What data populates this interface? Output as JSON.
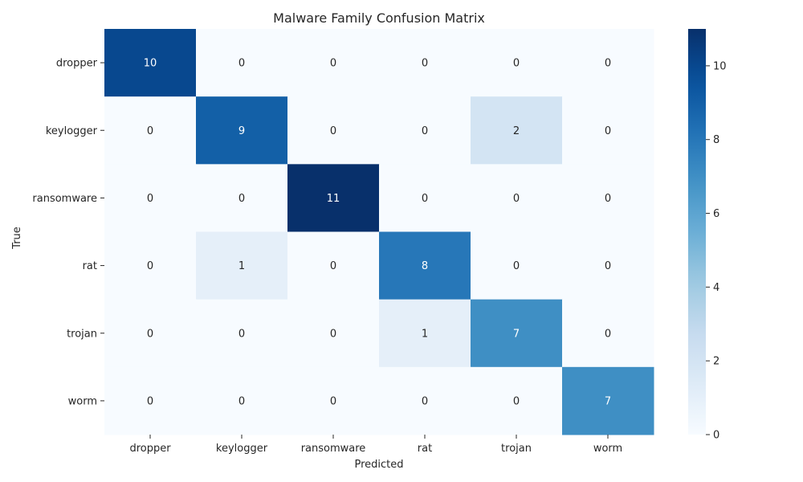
{
  "chart_data": {
    "type": "heatmap",
    "title": "Malware Family Confusion Matrix",
    "xlabel": "Predicted",
    "ylabel": "True",
    "x_categories": [
      "dropper",
      "keylogger",
      "ransomware",
      "rat",
      "trojan",
      "worm"
    ],
    "y_categories": [
      "dropper",
      "keylogger",
      "ransomware",
      "rat",
      "trojan",
      "worm"
    ],
    "values": [
      [
        10,
        0,
        0,
        0,
        0,
        0
      ],
      [
        0,
        9,
        0,
        0,
        2,
        0
      ],
      [
        0,
        0,
        11,
        0,
        0,
        0
      ],
      [
        0,
        1,
        0,
        8,
        0,
        0
      ],
      [
        0,
        0,
        0,
        1,
        7,
        0
      ],
      [
        0,
        0,
        0,
        0,
        0,
        7
      ]
    ],
    "colormap": "Blues",
    "color_range": [
      0,
      11
    ],
    "colorbar_ticks": [
      0,
      2,
      4,
      6,
      8,
      10
    ],
    "annotated": true
  }
}
